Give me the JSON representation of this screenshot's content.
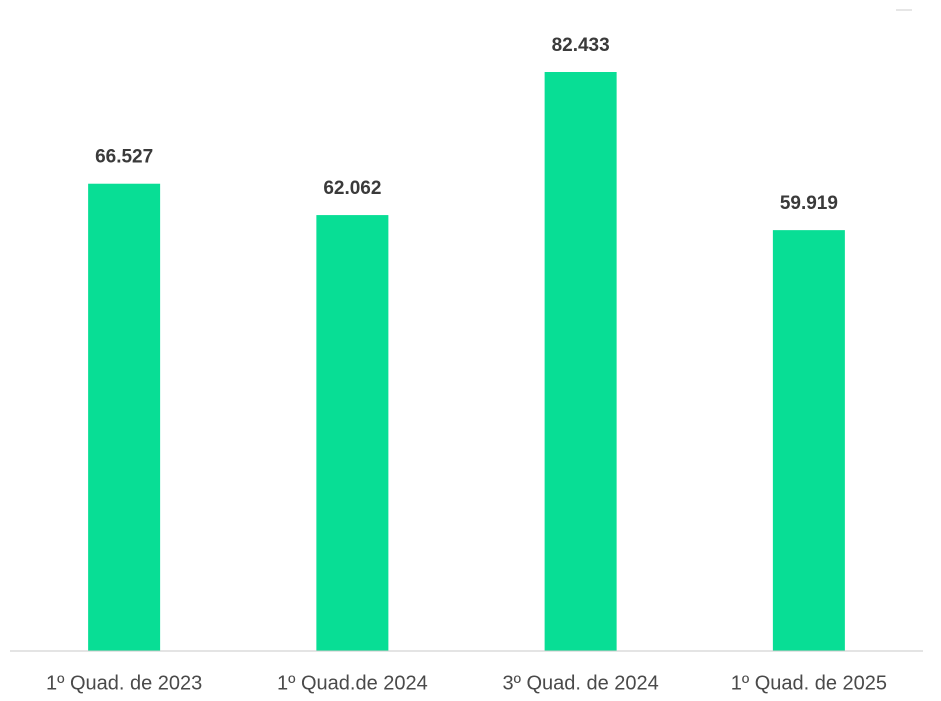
{
  "chart_data": {
    "type": "bar",
    "categories": [
      "1º Quad. de 2023",
      "1º Quad.de 2024",
      "3º Quad. de 2024",
      "1º Quad. de 2025"
    ],
    "values": [
      66527,
      62062,
      82433,
      59919
    ],
    "value_labels": [
      "66.527",
      "62.062",
      "82.433",
      "59.919"
    ],
    "color": "#08de95"
  }
}
